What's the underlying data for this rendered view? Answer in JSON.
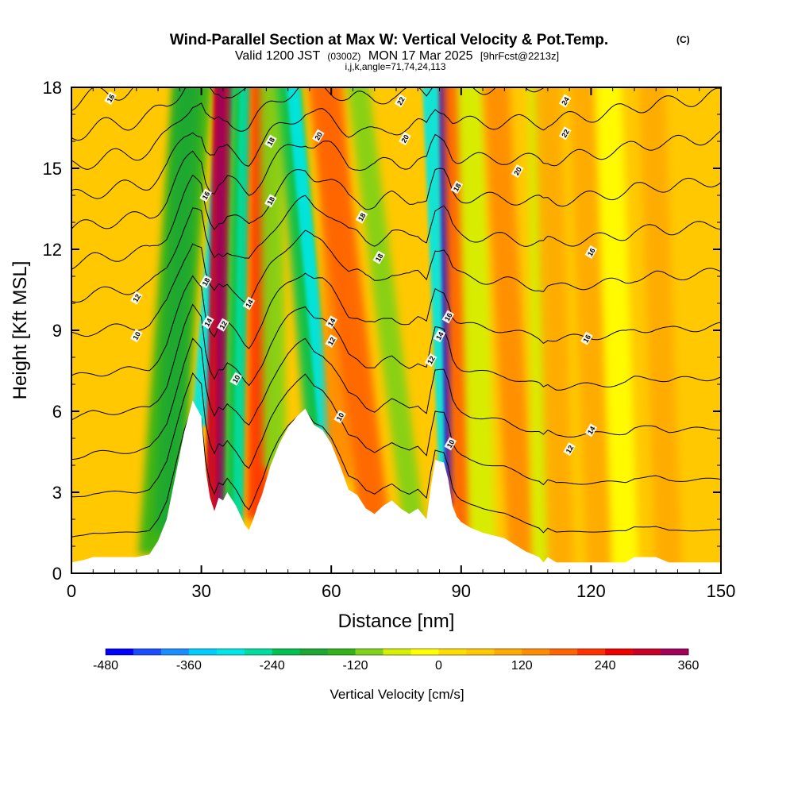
{
  "chart_data": {
    "type": "heatmap",
    "title": "Wind-Parallel Section at Max W: Vertical Velocity & Pot.Temp.",
    "title_mark": "(C)",
    "subtitle_main": "Valid 1200 JST",
    "subtitle_z": "(0300Z)",
    "subtitle_date": "MON 17 Mar 2025",
    "subtitle_fcst": "[9hrFcst@2213z]",
    "subtitle_small": "i,j,k,angle=71,74,24,113",
    "xlabel": "Distance [nm]",
    "ylabel": "Height [Kft MSL]",
    "xlim": [
      0,
      150
    ],
    "ylim": [
      0,
      18
    ],
    "x_ticks": [
      0,
      30,
      60,
      90,
      120,
      150
    ],
    "y_ticks": [
      0,
      3,
      6,
      9,
      12,
      15,
      18
    ],
    "colorbar": {
      "label": "Vertical Velocity [cm/s]",
      "min": -480,
      "max": 360,
      "step": 40,
      "tick_values": [
        -480,
        -360,
        -240,
        -120,
        0,
        120,
        240,
        360
      ],
      "colors": [
        "#0000ff",
        "#1a4dff",
        "#1a8cff",
        "#00ccff",
        "#00e6e6",
        "#00dca0",
        "#00c050",
        "#1aa832",
        "#33b219",
        "#80d219",
        "#d4f000",
        "#ffff00",
        "#ffdc00",
        "#ffc800",
        "#ffaa00",
        "#ff8c00",
        "#ff6400",
        "#ff3200",
        "#ee0000",
        "#c80028",
        "#a0005a",
        "#7a0080"
      ]
    },
    "terrain_kft": [
      [
        0,
        0.4
      ],
      [
        3,
        0.5
      ],
      [
        5,
        0.6
      ],
      [
        10,
        0.6
      ],
      [
        15,
        0.6
      ],
      [
        18,
        0.7
      ],
      [
        20,
        1.2
      ],
      [
        22,
        2.0
      ],
      [
        24,
        3.6
      ],
      [
        26,
        5.2
      ],
      [
        28,
        6.4
      ],
      [
        30,
        5.8
      ],
      [
        31,
        3.8
      ],
      [
        32,
        2.8
      ],
      [
        33,
        2.3
      ],
      [
        34,
        2.8
      ],
      [
        35,
        2.7
      ],
      [
        36,
        3.0
      ],
      [
        38,
        2.5
      ],
      [
        40,
        1.8
      ],
      [
        41,
        1.6
      ],
      [
        42,
        2.0
      ],
      [
        43,
        2.5
      ],
      [
        44,
        2.9
      ],
      [
        46,
        4.0
      ],
      [
        48,
        4.8
      ],
      [
        50,
        5.4
      ],
      [
        52,
        5.8
      ],
      [
        54,
        6.1
      ],
      [
        56,
        5.5
      ],
      [
        58,
        5.3
      ],
      [
        60,
        4.8
      ],
      [
        62,
        4.0
      ],
      [
        64,
        3.1
      ],
      [
        66,
        2.9
      ],
      [
        68,
        2.4
      ],
      [
        70,
        2.2
      ],
      [
        72,
        2.5
      ],
      [
        74,
        2.7
      ],
      [
        76,
        2.4
      ],
      [
        78,
        2.2
      ],
      [
        80,
        2.4
      ],
      [
        82,
        2.0
      ],
      [
        83,
        3.2
      ],
      [
        84,
        4.2
      ],
      [
        86,
        4.1
      ],
      [
        87,
        3.5
      ],
      [
        88,
        2.5
      ],
      [
        89,
        2.1
      ],
      [
        90,
        1.9
      ],
      [
        92,
        1.7
      ],
      [
        95,
        1.5
      ],
      [
        100,
        1.3
      ],
      [
        102,
        1.1
      ],
      [
        105,
        0.8
      ],
      [
        108,
        0.6
      ],
      [
        109,
        0.4
      ],
      [
        110,
        0.6
      ],
      [
        112,
        0.4
      ],
      [
        120,
        0.4
      ],
      [
        125,
        0.4
      ],
      [
        128,
        0.4
      ],
      [
        130,
        0.6
      ],
      [
        135,
        0.6
      ],
      [
        138,
        0.4
      ],
      [
        145,
        0.4
      ],
      [
        150,
        0.4
      ]
    ],
    "bands": [
      {
        "x": 20,
        "x_top": 28,
        "h": 5,
        "w": 4.5,
        "value": -140
      },
      {
        "x": 22,
        "x_top": 27,
        "h": 4,
        "w": 3,
        "value": -200
      },
      {
        "x": 29.5,
        "x_top": 36,
        "h": 3,
        "w": 1.8,
        "value": -300
      },
      {
        "x": 33,
        "x_top": 35,
        "h": 5,
        "w": 2.2,
        "value": 280
      },
      {
        "x": 34.5,
        "x_top": 34.5,
        "h": 11.5,
        "w": 1.0,
        "value": 340
      },
      {
        "x": 37,
        "x_top": 39,
        "h": 5,
        "w": 2.0,
        "value": -240
      },
      {
        "x": 38.5,
        "x_top": 40,
        "h": 8,
        "w": 1.2,
        "value": -280
      },
      {
        "x": 43,
        "x_top": 44,
        "h": 5,
        "w": 2.5,
        "value": 220
      },
      {
        "x": 47,
        "x_top": 46,
        "h": 7,
        "w": 2.6,
        "value": -110
      },
      {
        "x": 57,
        "x_top": 50,
        "h": 8,
        "w": 2.8,
        "value": -230
      },
      {
        "x": 59,
        "x_top": 51,
        "h": 6,
        "w": 1.5,
        "value": -300
      },
      {
        "x": 62,
        "x_top": 60,
        "h": 6,
        "w": 3.0,
        "value": 150
      },
      {
        "x": 70,
        "x_top": 58,
        "h": 6,
        "w": 3.5,
        "value": 180
      },
      {
        "x": 79,
        "x_top": 66,
        "h": 5,
        "w": 2.5,
        "value": -90
      },
      {
        "x": 87,
        "x_top": 83,
        "h": 5,
        "w": 2.0,
        "value": -300
      },
      {
        "x": 87.5,
        "x_top": 86,
        "h": 5,
        "w": 1.1,
        "value": -460
      },
      {
        "x": 90,
        "x_top": 88,
        "h": 7,
        "w": 2.5,
        "value": 170
      },
      {
        "x": 95,
        "x_top": 92,
        "h": 6,
        "w": 3.0,
        "value": -80
      },
      {
        "x": 104,
        "x_top": 98,
        "h": 8,
        "w": 3.0,
        "value": 120
      },
      {
        "x": 109,
        "x_top": 108,
        "h": 6,
        "w": 2.5,
        "value": -60
      },
      {
        "x": 113,
        "x_top": 110,
        "h": 8,
        "w": 3.0,
        "value": 110
      },
      {
        "x": 122,
        "x_top": 118,
        "h": 6,
        "w": 3.0,
        "value": 90
      },
      {
        "x": 128,
        "x_top": 124,
        "h": 6,
        "w": 3.0,
        "value": -30
      },
      {
        "x": 138,
        "x_top": 134,
        "h": 6,
        "w": 3.0,
        "value": 80
      }
    ],
    "theta_contours": [
      {
        "base": 1.0,
        "label": "",
        "label_x": 0
      },
      {
        "base": 2.5,
        "label": "",
        "label_x": 0
      },
      {
        "base": 4.0,
        "label": "",
        "label_x": 0
      },
      {
        "base": 5.5,
        "label": "",
        "label_x": 0
      },
      {
        "base": 7.0,
        "label": "",
        "label_x": 0
      },
      {
        "base": 8.6,
        "label": "10",
        "label_x": 15
      },
      {
        "base": 10.0,
        "label": "12",
        "label_x": 15
      },
      {
        "base": 11.3,
        "label": "",
        "label_x": 0
      },
      {
        "base": 12.6,
        "label": "",
        "label_x": 0
      },
      {
        "base": 13.8,
        "label": "",
        "label_x": 0
      },
      {
        "base": 15.0,
        "label": "",
        "label_x": 0
      },
      {
        "base": 16.2,
        "label": "",
        "label_x": 0
      },
      {
        "base": 17.4,
        "label": "16",
        "label_x": 9
      }
    ],
    "contour_labels": [
      {
        "x": 31,
        "y": 14.0,
        "text": "16"
      },
      {
        "x": 31,
        "y": 10.8,
        "text": "18"
      },
      {
        "x": 31.5,
        "y": 9.3,
        "text": "14"
      },
      {
        "x": 35,
        "y": 9.2,
        "text": "12"
      },
      {
        "x": 41,
        "y": 10.0,
        "text": "14"
      },
      {
        "x": 38,
        "y": 7.2,
        "text": "10"
      },
      {
        "x": 46,
        "y": 16.0,
        "text": "18"
      },
      {
        "x": 46,
        "y": 13.8,
        "text": "18"
      },
      {
        "x": 57,
        "y": 16.2,
        "text": "20"
      },
      {
        "x": 60,
        "y": 9.3,
        "text": "14"
      },
      {
        "x": 60,
        "y": 8.6,
        "text": "12"
      },
      {
        "x": 62,
        "y": 5.8,
        "text": "10"
      },
      {
        "x": 67,
        "y": 13.2,
        "text": "18"
      },
      {
        "x": 71,
        "y": 11.7,
        "text": "18"
      },
      {
        "x": 76,
        "y": 17.5,
        "text": "22"
      },
      {
        "x": 77,
        "y": 16.1,
        "text": "20"
      },
      {
        "x": 83,
        "y": 7.9,
        "text": "12"
      },
      {
        "x": 85,
        "y": 8.8,
        "text": "14"
      },
      {
        "x": 87,
        "y": 9.5,
        "text": "16"
      },
      {
        "x": 87.5,
        "y": 4.8,
        "text": "10"
      },
      {
        "x": 89,
        "y": 14.3,
        "text": "18"
      },
      {
        "x": 103,
        "y": 14.9,
        "text": "20"
      },
      {
        "x": 114,
        "y": 17.5,
        "text": "24"
      },
      {
        "x": 114,
        "y": 16.3,
        "text": "22"
      },
      {
        "x": 120,
        "y": 11.9,
        "text": "16"
      },
      {
        "x": 119,
        "y": 8.7,
        "text": "16"
      },
      {
        "x": 120,
        "y": 5.3,
        "text": "14"
      },
      {
        "x": 115,
        "y": 4.6,
        "text": "12"
      }
    ]
  }
}
